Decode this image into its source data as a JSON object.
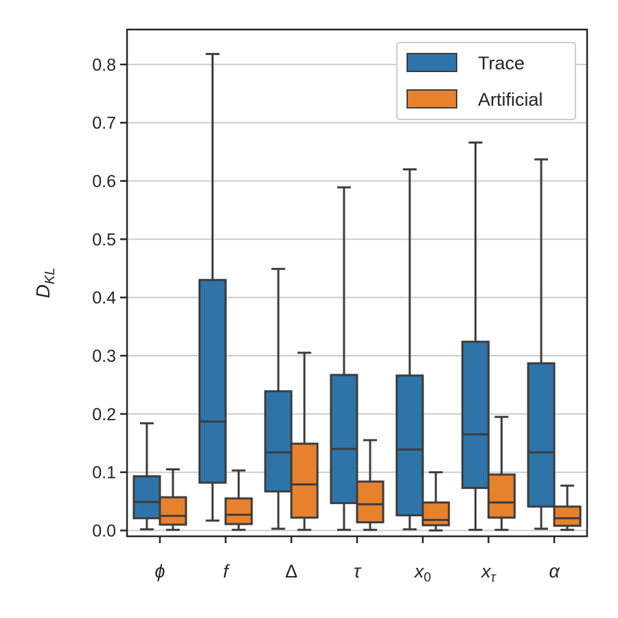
{
  "chart_data": {
    "type": "box",
    "title": "",
    "xlabel": "",
    "ylabel": "D",
    "ylabel_sub": "KL",
    "ylim": [
      -0.01,
      0.86
    ],
    "yticks": [
      0.0,
      0.1,
      0.2,
      0.3,
      0.4,
      0.5,
      0.6,
      0.7,
      0.8
    ],
    "ytick_labels": [
      "0.0",
      "0.1",
      "0.2",
      "0.3",
      "0.4",
      "0.5",
      "0.6",
      "0.7",
      "0.8"
    ],
    "grid": "horizontal",
    "legend_position": "top-right",
    "categories": [
      {
        "base": "ϕ",
        "sub": ""
      },
      {
        "base": "f",
        "sub": ""
      },
      {
        "base": "Δ",
        "sub": ""
      },
      {
        "base": "τ",
        "sub": ""
      },
      {
        "base": "x",
        "sub": "0"
      },
      {
        "base": "x",
        "sub": "τ"
      },
      {
        "base": "α",
        "sub": ""
      }
    ],
    "series": [
      {
        "name": "Trace",
        "color": "#2e74a8",
        "boxes": [
          {
            "min": 0.002,
            "q1": 0.021,
            "median": 0.049,
            "q3": 0.093,
            "max": 0.184
          },
          {
            "min": 0.017,
            "q1": 0.082,
            "median": 0.187,
            "q3": 0.43,
            "max": 0.818
          },
          {
            "min": 0.003,
            "q1": 0.067,
            "median": 0.134,
            "q3": 0.239,
            "max": 0.449
          },
          {
            "min": 0.001,
            "q1": 0.047,
            "median": 0.14,
            "q3": 0.267,
            "max": 0.589
          },
          {
            "min": 0.002,
            "q1": 0.026,
            "median": 0.139,
            "q3": 0.266,
            "max": 0.62
          },
          {
            "min": 0.001,
            "q1": 0.073,
            "median": 0.165,
            "q3": 0.324,
            "max": 0.666
          },
          {
            "min": 0.003,
            "q1": 0.041,
            "median": 0.134,
            "q3": 0.287,
            "max": 0.637
          }
        ]
      },
      {
        "name": "Artificial",
        "color": "#e8812b",
        "boxes": [
          {
            "min": 0.001,
            "q1": 0.01,
            "median": 0.025,
            "q3": 0.057,
            "max": 0.105
          },
          {
            "min": 0.001,
            "q1": 0.011,
            "median": 0.027,
            "q3": 0.055,
            "max": 0.103
          },
          {
            "min": 0.001,
            "q1": 0.022,
            "median": 0.079,
            "q3": 0.149,
            "max": 0.305
          },
          {
            "min": 0.001,
            "q1": 0.014,
            "median": 0.045,
            "q3": 0.084,
            "max": 0.155
          },
          {
            "min": 0.0,
            "q1": 0.009,
            "median": 0.018,
            "q3": 0.048,
            "max": 0.1
          },
          {
            "min": 0.001,
            "q1": 0.022,
            "median": 0.048,
            "q3": 0.096,
            "max": 0.195
          },
          {
            "min": 0.001,
            "q1": 0.008,
            "median": 0.021,
            "q3": 0.041,
            "max": 0.077
          }
        ]
      }
    ]
  }
}
